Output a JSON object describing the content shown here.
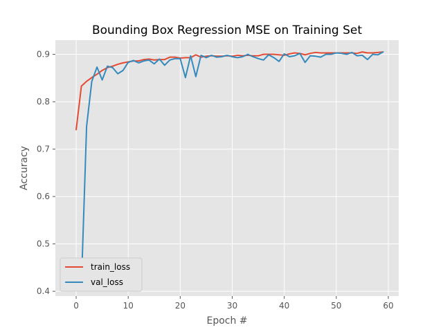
{
  "chart_data": {
    "type": "line",
    "title": "Bounding Box Regression MSE on Training Set",
    "xlabel": "Epoch #",
    "ylabel": "Accuracy",
    "xlim": [
      -4,
      62
    ],
    "ylim": [
      0.39,
      0.93
    ],
    "xticks": [
      0,
      10,
      20,
      30,
      40,
      50,
      60
    ],
    "yticks": [
      0.4,
      0.5,
      0.6,
      0.7,
      0.8,
      0.9
    ],
    "grid": true,
    "legend_position": "lower-left",
    "x": [
      0,
      1,
      2,
      3,
      4,
      5,
      6,
      7,
      8,
      9,
      10,
      11,
      12,
      13,
      14,
      15,
      16,
      17,
      18,
      19,
      20,
      21,
      22,
      23,
      24,
      25,
      26,
      27,
      28,
      29,
      30,
      31,
      32,
      33,
      34,
      35,
      36,
      37,
      38,
      39,
      40,
      41,
      42,
      43,
      44,
      45,
      46,
      47,
      48,
      49,
      50,
      51,
      52,
      53,
      54,
      55,
      56,
      57,
      58,
      59
    ],
    "series": [
      {
        "name": "train_loss",
        "color": "#E24A33",
        "values": [
          0.741,
          0.833,
          0.843,
          0.851,
          0.858,
          0.866,
          0.872,
          0.875,
          0.879,
          0.882,
          0.884,
          0.886,
          0.886,
          0.889,
          0.89,
          0.888,
          0.889,
          0.889,
          0.894,
          0.894,
          0.892,
          0.893,
          0.893,
          0.899,
          0.894,
          0.896,
          0.897,
          0.896,
          0.896,
          0.897,
          0.896,
          0.898,
          0.897,
          0.898,
          0.897,
          0.897,
          0.9,
          0.9,
          0.9,
          0.899,
          0.898,
          0.901,
          0.903,
          0.902,
          0.899,
          0.902,
          0.904,
          0.903,
          0.903,
          0.903,
          0.903,
          0.903,
          0.903,
          0.903,
          0.902,
          0.905,
          0.903,
          0.903,
          0.904,
          0.905
        ]
      },
      {
        "name": "val_loss",
        "color": "#348ABD",
        "values": [
          0.413,
          0.412,
          0.748,
          0.843,
          0.873,
          0.846,
          0.875,
          0.872,
          0.859,
          0.866,
          0.883,
          0.887,
          0.882,
          0.886,
          0.888,
          0.88,
          0.89,
          0.877,
          0.888,
          0.891,
          0.891,
          0.851,
          0.897,
          0.853,
          0.898,
          0.893,
          0.898,
          0.894,
          0.895,
          0.898,
          0.895,
          0.893,
          0.895,
          0.9,
          0.895,
          0.891,
          0.888,
          0.899,
          0.893,
          0.885,
          0.901,
          0.895,
          0.897,
          0.902,
          0.883,
          0.897,
          0.896,
          0.894,
          0.9,
          0.9,
          0.903,
          0.902,
          0.9,
          0.904,
          0.897,
          0.898,
          0.889,
          0.9,
          0.899,
          0.905
        ]
      }
    ]
  }
}
